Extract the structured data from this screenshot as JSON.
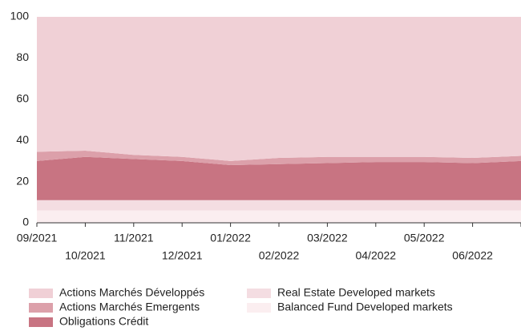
{
  "chart_data": {
    "type": "stacked_area",
    "x": [
      "09/2021",
      "10/2021",
      "11/2021",
      "12/2021",
      "01/2022",
      "02/2022",
      "03/2022",
      "04/2022",
      "05/2022",
      "06/2022",
      null
    ],
    "series": [
      {
        "name": "Actions Marchés Développés",
        "color": "#f0d0d6",
        "values": [
          65.5,
          65,
          67,
          68,
          70,
          68.5,
          68,
          68,
          68,
          68.5,
          67.5
        ]
      },
      {
        "name": "Actions Marchés Emergents",
        "color": "#dca0aa",
        "values": [
          4.5,
          3,
          2,
          2,
          2,
          3,
          3,
          2.5,
          2.5,
          2.5,
          2.5
        ]
      },
      {
        "name": "Obligations Crédit",
        "color": "#c87482",
        "values": [
          19,
          21,
          20,
          19,
          17,
          17.5,
          18,
          18.5,
          18.5,
          18,
          19
        ]
      },
      {
        "name": "Real Estate Developed markets",
        "color": "#f4dde2",
        "values": [
          5,
          5,
          5,
          5,
          5,
          5,
          5,
          5,
          5,
          5,
          5
        ]
      },
      {
        "name": "Balanced Fund Developed markets",
        "color": "#fbeef0",
        "values": [
          6,
          6,
          6,
          6,
          6,
          6,
          6,
          6,
          6,
          6,
          6
        ]
      }
    ],
    "ylim": [
      0,
      100
    ],
    "yticks": [
      0,
      20,
      40,
      60,
      80,
      100
    ]
  }
}
